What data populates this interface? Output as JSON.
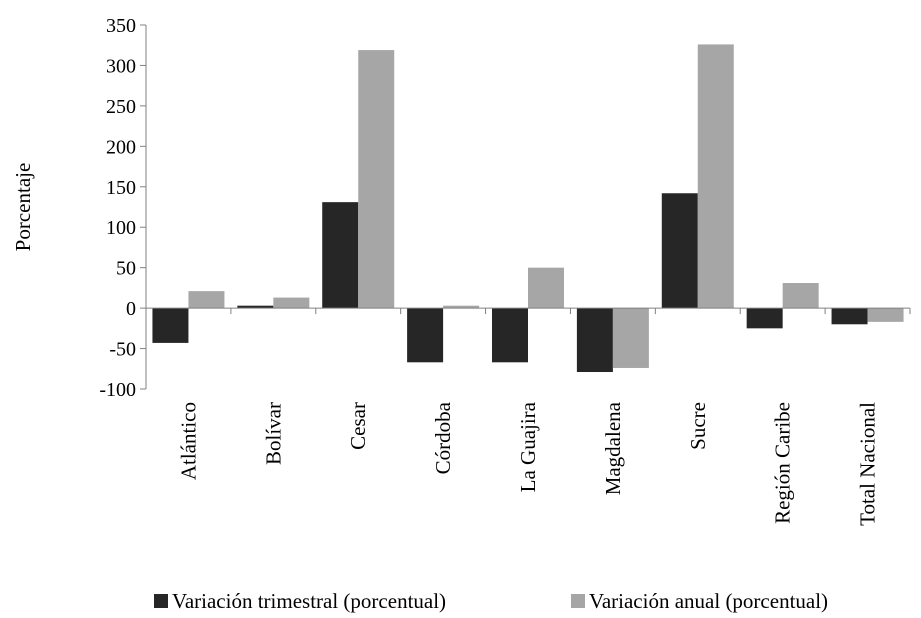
{
  "chart_data": {
    "type": "bar",
    "title": "",
    "xlabel": "",
    "ylabel": "Porcentaje",
    "ylim": [
      -100,
      350
    ],
    "yticks": [
      -100,
      -50,
      0,
      50,
      100,
      150,
      200,
      250,
      300,
      350
    ],
    "ytick_labels": [
      "-100",
      "-50",
      "0",
      "50",
      "100",
      "150",
      "200",
      "250",
      "300",
      "350"
    ],
    "grid": false,
    "legend_position": "bottom",
    "categories": [
      "Atlántico",
      "Bolívar",
      "Cesar",
      "Córdoba",
      "La Guajira",
      "Magdalena",
      "Sucre",
      "Región Caribe",
      "Total Nacional"
    ],
    "series": [
      {
        "name": "Variación trimestral (porcentual)",
        "color": "#262626",
        "values": [
          -43,
          3,
          131,
          -67,
          -67,
          -79,
          142,
          -25,
          -20
        ]
      },
      {
        "name": "Variación anual (porcentual)",
        "color": "#a6a6a6",
        "values": [
          21,
          13,
          319,
          3,
          50,
          -74,
          326,
          31,
          -17
        ]
      }
    ]
  }
}
